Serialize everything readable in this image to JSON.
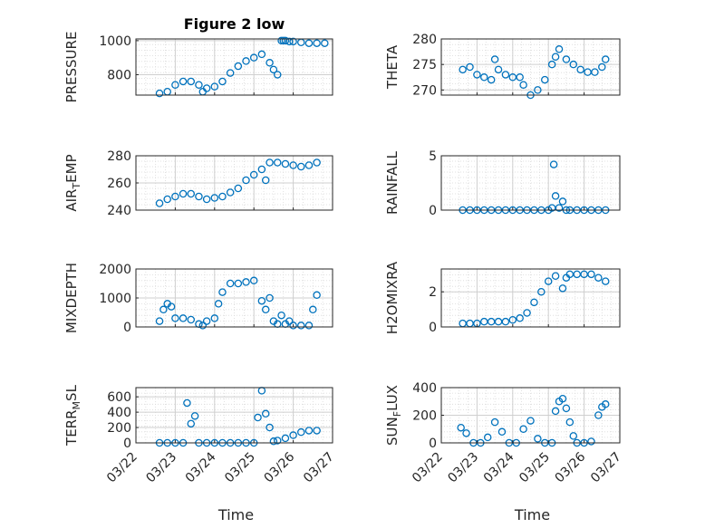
{
  "chart_data": [
    {
      "type": "scatter",
      "title": "Figure 2 low",
      "ylabel": "PRESSURE",
      "ylim": [
        680,
        1010
      ],
      "yticks": [
        {
          "v": 800,
          "label": "800"
        },
        {
          "v": 1000,
          "label": "1000"
        }
      ],
      "x": [
        0.6,
        0.8,
        1.0,
        1.2,
        1.4,
        1.6,
        1.7,
        1.8,
        2.0,
        2.2,
        2.4,
        2.6,
        2.8,
        3.0,
        3.2,
        3.4,
        3.5,
        3.6,
        3.7,
        3.75,
        3.8,
        3.9,
        4.0,
        4.2,
        4.4,
        4.6,
        4.8
      ],
      "y": [
        690,
        700,
        740,
        760,
        760,
        740,
        700,
        720,
        730,
        760,
        810,
        850,
        880,
        900,
        920,
        870,
        830,
        800,
        1000,
        1000,
        1000,
        995,
        995,
        990,
        985,
        985,
        985
      ]
    },
    {
      "type": "scatter",
      "ylabel": "THETA",
      "ylim": [
        269,
        280
      ],
      "yticks": [
        {
          "v": 270,
          "label": "270"
        },
        {
          "v": 275,
          "label": "275"
        },
        {
          "v": 280,
          "label": "280"
        }
      ],
      "x": [
        0.6,
        0.8,
        1.0,
        1.2,
        1.4,
        1.5,
        1.6,
        1.8,
        2.0,
        2.2,
        2.3,
        2.5,
        2.7,
        2.9,
        3.1,
        3.2,
        3.3,
        3.5,
        3.7,
        3.9,
        4.1,
        4.3,
        4.5,
        4.6
      ],
      "y": [
        274,
        274.5,
        273,
        272.5,
        272,
        276,
        274,
        273,
        272.5,
        272.5,
        271,
        269,
        270,
        272,
        275,
        276.5,
        278,
        276,
        275,
        274,
        273.5,
        273.5,
        274.5,
        276
      ]
    },
    {
      "type": "scatter",
      "ylabel": "AIR_TEMP",
      "ylim": [
        240,
        280
      ],
      "yticks": [
        {
          "v": 240,
          "label": "240"
        },
        {
          "v": 260,
          "label": "260"
        },
        {
          "v": 280,
          "label": "280"
        }
      ],
      "x": [
        0.6,
        0.8,
        1.0,
        1.2,
        1.4,
        1.6,
        1.8,
        2.0,
        2.2,
        2.4,
        2.6,
        2.8,
        3.0,
        3.2,
        3.3,
        3.4,
        3.6,
        3.8,
        4.0,
        4.2,
        4.4,
        4.6
      ],
      "y": [
        245,
        248,
        250,
        252,
        252,
        250,
        248,
        249,
        250,
        253,
        256,
        262,
        266,
        270,
        262,
        275,
        275,
        274,
        273,
        272,
        273,
        275
      ]
    },
    {
      "type": "scatter",
      "ylabel": "RAINFALL",
      "ylim": [
        0,
        5
      ],
      "yticks": [
        {
          "v": 0,
          "label": "0"
        },
        {
          "v": 5,
          "label": "5"
        }
      ],
      "x": [
        0.6,
        0.8,
        1.0,
        1.2,
        1.4,
        1.6,
        1.8,
        2.0,
        2.2,
        2.4,
        2.6,
        2.8,
        3.0,
        3.1,
        3.15,
        3.2,
        3.3,
        3.4,
        3.5,
        3.6,
        3.8,
        4.0,
        4.2,
        4.4,
        4.6
      ],
      "y": [
        0,
        0,
        0,
        0,
        0,
        0,
        0,
        0,
        0,
        0,
        0,
        0,
        0,
        0.2,
        4.2,
        1.3,
        0.2,
        0.8,
        0,
        0,
        0,
        0,
        0,
        0,
        0
      ]
    },
    {
      "type": "scatter",
      "ylabel": "MIXDEPTH",
      "ylim": [
        0,
        2000
      ],
      "yticks": [
        {
          "v": 0,
          "label": "0"
        },
        {
          "v": 1000,
          "label": "1000"
        },
        {
          "v": 2000,
          "label": "2000"
        }
      ],
      "x": [
        0.6,
        0.7,
        0.8,
        0.9,
        1.0,
        1.2,
        1.4,
        1.6,
        1.7,
        1.8,
        2.0,
        2.1,
        2.2,
        2.4,
        2.6,
        2.8,
        3.0,
        3.2,
        3.3,
        3.4,
        3.5,
        3.6,
        3.7,
        3.8,
        3.9,
        4.0,
        4.2,
        4.4,
        4.5,
        4.6
      ],
      "y": [
        200,
        600,
        800,
        700,
        300,
        300,
        250,
        100,
        50,
        200,
        300,
        800,
        1200,
        1500,
        1500,
        1550,
        1600,
        900,
        600,
        1000,
        200,
        100,
        400,
        100,
        200,
        50,
        50,
        50,
        600,
        1100
      ]
    },
    {
      "type": "scatter",
      "ylabel": "H2OMIXRA",
      "ylim": [
        0,
        3.3
      ],
      "yticks": [
        {
          "v": 0,
          "label": "0"
        },
        {
          "v": 2,
          "label": "2"
        }
      ],
      "x": [
        0.6,
        0.8,
        1.0,
        1.2,
        1.4,
        1.6,
        1.8,
        2.0,
        2.2,
        2.4,
        2.6,
        2.8,
        3.0,
        3.2,
        3.4,
        3.5,
        3.6,
        3.8,
        4.0,
        4.2,
        4.4,
        4.6
      ],
      "y": [
        0.2,
        0.2,
        0.2,
        0.3,
        0.3,
        0.3,
        0.3,
        0.4,
        0.5,
        0.8,
        1.4,
        2.0,
        2.6,
        2.9,
        2.2,
        2.8,
        3.0,
        3.0,
        3.0,
        3.0,
        2.8,
        2.6
      ]
    },
    {
      "type": "scatter",
      "ylabel": "TERR_MSL",
      "ylim": [
        0,
        720
      ],
      "yticks": [
        {
          "v": 0,
          "label": "0"
        },
        {
          "v": 200,
          "label": "200"
        },
        {
          "v": 400,
          "label": "400"
        },
        {
          "v": 600,
          "label": "600"
        }
      ],
      "x": [
        0.6,
        0.8,
        1.0,
        1.2,
        1.3,
        1.4,
        1.5,
        1.6,
        1.8,
        2.0,
        2.2,
        2.4,
        2.6,
        2.8,
        3.0,
        3.1,
        3.2,
        3.3,
        3.4,
        3.5,
        3.6,
        3.8,
        4.0,
        4.2,
        4.4,
        4.6
      ],
      "y": [
        0,
        0,
        0,
        0,
        520,
        250,
        350,
        0,
        0,
        0,
        0,
        0,
        0,
        0,
        0,
        330,
        680,
        380,
        200,
        20,
        30,
        60,
        100,
        140,
        160,
        160
      ]
    },
    {
      "type": "scatter",
      "ylabel": "SUN_FLUX",
      "ylim": [
        0,
        400
      ],
      "yticks": [
        {
          "v": 0,
          "label": "0"
        },
        {
          "v": 200,
          "label": "200"
        },
        {
          "v": 400,
          "label": "400"
        }
      ],
      "x": [
        0.55,
        0.7,
        0.9,
        1.1,
        1.3,
        1.5,
        1.7,
        1.9,
        2.1,
        2.3,
        2.5,
        2.7,
        2.9,
        3.1,
        3.2,
        3.3,
        3.4,
        3.5,
        3.6,
        3.7,
        3.8,
        4.0,
        4.2,
        4.4,
        4.5,
        4.6
      ],
      "y": [
        110,
        70,
        0,
        0,
        40,
        150,
        80,
        0,
        0,
        100,
        160,
        30,
        0,
        0,
        230,
        300,
        320,
        250,
        150,
        50,
        0,
        0,
        10,
        200,
        260,
        280
      ]
    }
  ],
  "shared_x": {
    "label": "Time",
    "xlim": [
      0,
      5
    ],
    "ticks": [
      {
        "v": 0,
        "label": "03/22"
      },
      {
        "v": 1,
        "label": "03/23"
      },
      {
        "v": 2,
        "label": "03/24"
      },
      {
        "v": 3,
        "label": "03/25"
      },
      {
        "v": 4,
        "label": "03/26"
      },
      {
        "v": 5,
        "label": "03/27"
      }
    ]
  },
  "style": {
    "marker_color": "#0072bd",
    "grid_color": "#d9d9d9",
    "axis_color": "#262626"
  }
}
